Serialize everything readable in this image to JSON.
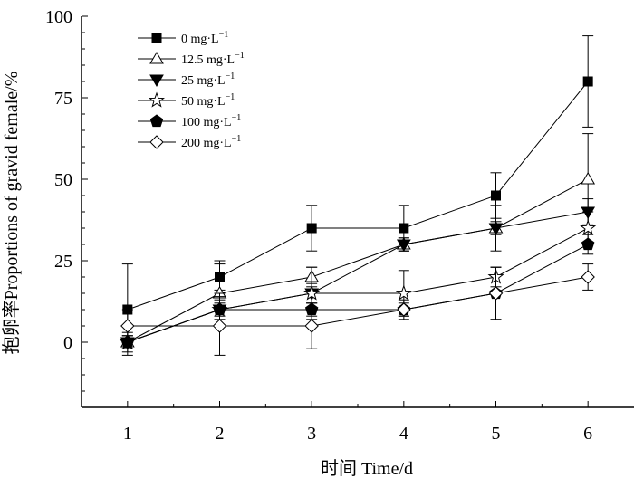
{
  "chart_data": {
    "type": "line",
    "xlabel": "时间 Time/d",
    "ylabel": "抱卵率Proportions of gravid female/%",
    "x": [
      1,
      2,
      3,
      4,
      5,
      6
    ],
    "xlim": [
      0.5,
      6.5
    ],
    "ylim": [
      -20,
      100
    ],
    "yticks": [
      0,
      25,
      50,
      75,
      100
    ],
    "xticks": [
      1,
      2,
      3,
      4,
      5,
      6
    ],
    "grid": false,
    "legend_position": "top-left",
    "series": [
      {
        "name": "0 mg·L",
        "superscript": "−1",
        "marker": "filled-square",
        "values": [
          10,
          20,
          35,
          35,
          45,
          80
        ],
        "err": [
          14,
          4,
          7,
          7,
          7,
          14
        ]
      },
      {
        "name": "12.5 mg·L",
        "superscript": "−1",
        "marker": "open-triangle-up",
        "values": [
          0,
          15,
          20,
          30,
          35,
          50
        ],
        "err": [
          3,
          10,
          3,
          2,
          7,
          14
        ]
      },
      {
        "name": "25 mg·L",
        "superscript": "−1",
        "marker": "filled-triangle-down",
        "values": [
          0,
          10,
          15,
          30,
          35,
          40
        ],
        "err": [
          2,
          2,
          8,
          2,
          2,
          4
        ]
      },
      {
        "name": "50 mg·L",
        "superscript": "−1",
        "marker": "open-star",
        "values": [
          0,
          10,
          15,
          15,
          20,
          35
        ],
        "err": [
          2,
          5,
          3,
          7,
          3,
          5
        ]
      },
      {
        "name": "100 mg·L",
        "superscript": "−1",
        "marker": "filled-pentagon",
        "values": [
          0,
          10,
          10,
          10,
          15,
          30
        ],
        "err": [
          2,
          3,
          2,
          2,
          8,
          3
        ]
      },
      {
        "name": "200 mg·L",
        "superscript": "−1",
        "marker": "open-diamond",
        "values": [
          5,
          5,
          5,
          10,
          15,
          20
        ],
        "err": [
          5,
          9,
          7,
          3,
          8,
          4
        ]
      }
    ]
  }
}
